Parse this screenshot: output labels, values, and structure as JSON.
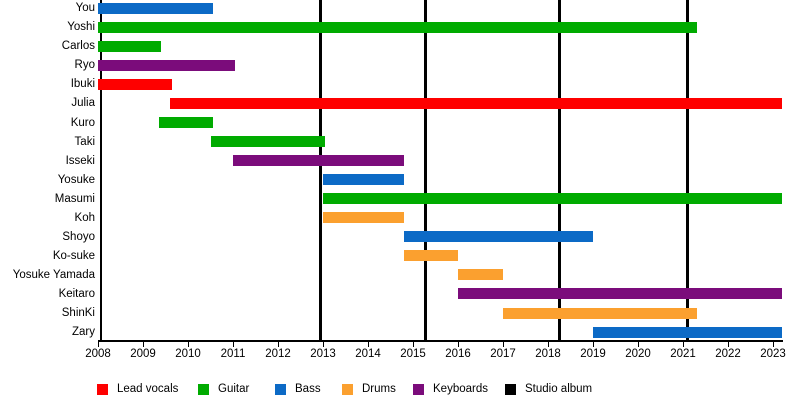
{
  "chart_data": {
    "type": "bar",
    "subtype": "horizontal-timeline-gantt",
    "title": "",
    "xlabel": "",
    "ylabel": "",
    "grid": "off",
    "background_color": "#ffffff",
    "x_axis": {
      "start": 2008,
      "end": 2023.2,
      "tick_years": [
        "2008",
        "2009",
        "2010",
        "2011",
        "2012",
        "2013",
        "2014",
        "2015",
        "2016",
        "2017",
        "2018",
        "2019",
        "2020",
        "2021",
        "2022",
        "2023"
      ]
    },
    "members": [
      {
        "name": "You",
        "role": "bass",
        "start": 2008.0,
        "end": 2010.55
      },
      {
        "name": "Yoshi",
        "role": "guitar",
        "start": 2008.0,
        "end": 2021.3
      },
      {
        "name": "Carlos",
        "role": "guitar",
        "start": 2008.0,
        "end": 2009.4
      },
      {
        "name": "Ryo",
        "role": "keyboards",
        "start": 2008.0,
        "end": 2011.05
      },
      {
        "name": "Ibuki",
        "role": "lead_vocals",
        "start": 2008.0,
        "end": 2009.65
      },
      {
        "name": "Julia",
        "role": "lead_vocals",
        "start": 2009.6,
        "end": 2023.2
      },
      {
        "name": "Kuro",
        "role": "guitar",
        "start": 2009.35,
        "end": 2010.55
      },
      {
        "name": "Taki",
        "role": "guitar",
        "start": 2010.5,
        "end": 2013.05
      },
      {
        "name": "Isseki",
        "role": "keyboards",
        "start": 2011.0,
        "end": 2014.8
      },
      {
        "name": "Yosuke",
        "role": "bass",
        "start": 2013.0,
        "end": 2014.8
      },
      {
        "name": "Masumi",
        "role": "guitar",
        "start": 2013.0,
        "end": 2023.2
      },
      {
        "name": "Koh",
        "role": "drums",
        "start": 2013.0,
        "end": 2014.8
      },
      {
        "name": "Shoyo",
        "role": "bass",
        "start": 2014.8,
        "end": 2019.0
      },
      {
        "name": "Ko-suke",
        "role": "drums",
        "start": 2014.8,
        "end": 2016.0
      },
      {
        "name": "Yosuke Yamada",
        "role": "drums",
        "start": 2016.0,
        "end": 2017.0
      },
      {
        "name": "Keitaro",
        "role": "keyboards",
        "start": 2016.0,
        "end": 2023.2
      },
      {
        "name": "ShinKi",
        "role": "drums",
        "start": 2017.0,
        "end": 2021.3
      },
      {
        "name": "Zary",
        "role": "bass",
        "start": 2019.0,
        "end": 2023.2
      }
    ],
    "albums": {
      "label": "Studio album",
      "years": [
        2012.95,
        2015.27,
        2018.25,
        2021.1
      ]
    },
    "legend": [
      {
        "key": "lead_vocals",
        "label": "Lead vocals",
        "color": "#fe0000"
      },
      {
        "key": "guitar",
        "label": "Guitar",
        "color": "#00ab00"
      },
      {
        "key": "bass",
        "label": "Bass",
        "color": "#0c6ac6"
      },
      {
        "key": "drums",
        "label": "Drums",
        "color": "#fba02f"
      },
      {
        "key": "keyboards",
        "label": "Keyboards",
        "color": "#7b0c7b"
      },
      {
        "key": "studio_album",
        "label": "Studio album",
        "color": "#000000"
      }
    ]
  }
}
